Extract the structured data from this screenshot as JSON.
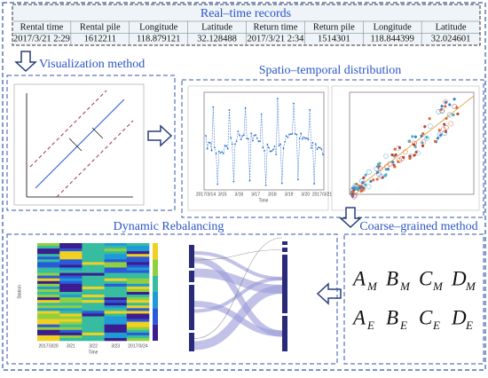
{
  "records": {
    "title": "Real–time records",
    "headers": [
      "Rental time",
      "Rental pile",
      "Longitude",
      "Latitude",
      "Return time",
      "Return pile",
      "Longitude",
      "Latitude"
    ],
    "row": [
      "2017/3/21 2:29",
      "1612211",
      "118.879121",
      "32.128488",
      "2017/3/21 2:34",
      "1514301",
      "118.844399",
      "32.024601"
    ]
  },
  "visualization": {
    "title": "Visualization method"
  },
  "spatiotemporal": {
    "title": "Spatio–temporal distribution",
    "time_labels": [
      "2017/3/14",
      "3/15",
      "3/16",
      "3/17",
      "3/18",
      "3/19",
      "3/20",
      "2017/3/21"
    ],
    "x_label": "Time"
  },
  "coarse": {
    "title": "Coarse–grained method",
    "symbols": [
      [
        {
          "letter": "A",
          "sub": "M"
        },
        {
          "letter": "B",
          "sub": "M"
        },
        {
          "letter": "C",
          "sub": "M"
        },
        {
          "letter": "D",
          "sub": "M"
        }
      ],
      [
        {
          "letter": "A",
          "sub": "E"
        },
        {
          "letter": "B",
          "sub": "E"
        },
        {
          "letter": "C",
          "sub": "E"
        },
        {
          "letter": "D",
          "sub": "E"
        }
      ]
    ]
  },
  "rebalancing": {
    "title": "Dynamic Rebalancing",
    "time_labels": [
      "2017/3/20",
      "3/21",
      "3/22",
      "3/23",
      "2017/3/24"
    ],
    "x_label": "Time",
    "y_label": "Station"
  }
}
